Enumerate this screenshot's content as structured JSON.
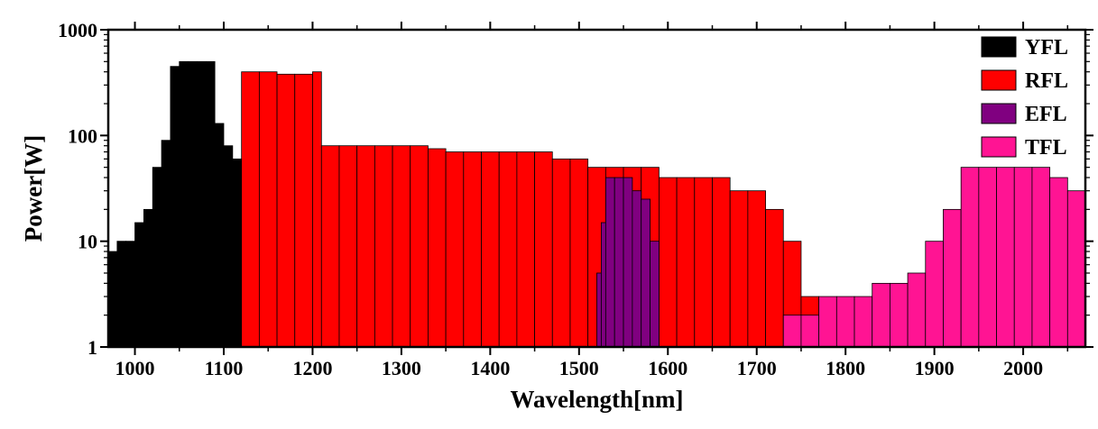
{
  "chart_data": {
    "type": "bar",
    "xlabel": "Wavelength[nm]",
    "ylabel": "Power[W]",
    "xlim": [
      970,
      2070
    ],
    "ylim": [
      1,
      1000
    ],
    "yscale": "log",
    "grid": false,
    "legend_position": "top-right",
    "x_ticks": [
      "1000",
      "1100",
      "1200",
      "1300",
      "1400",
      "1500",
      "1600",
      "1700",
      "1800",
      "1900",
      "2000"
    ],
    "y_ticks": [
      "1",
      "10",
      "100",
      "1000"
    ],
    "series": [
      {
        "name": "YFL",
        "color": "#000000",
        "bins": [
          [
            970,
            980,
            8
          ],
          [
            980,
            990,
            10
          ],
          [
            990,
            1000,
            10
          ],
          [
            1000,
            1010,
            15
          ],
          [
            1010,
            1020,
            20
          ],
          [
            1020,
            1030,
            50
          ],
          [
            1030,
            1040,
            90
          ],
          [
            1040,
            1050,
            450
          ],
          [
            1050,
            1060,
            500
          ],
          [
            1060,
            1070,
            500
          ],
          [
            1070,
            1080,
            500
          ],
          [
            1080,
            1090,
            500
          ],
          [
            1090,
            1100,
            130
          ],
          [
            1100,
            1110,
            80
          ],
          [
            1110,
            1120,
            60
          ]
        ]
      },
      {
        "name": "RFL",
        "color": "#ff0000",
        "bins": [
          [
            1120,
            1140,
            400
          ],
          [
            1140,
            1160,
            400
          ],
          [
            1160,
            1180,
            380
          ],
          [
            1180,
            1200,
            380
          ],
          [
            1200,
            1210,
            400
          ],
          [
            1210,
            1230,
            80
          ],
          [
            1230,
            1250,
            80
          ],
          [
            1250,
            1270,
            80
          ],
          [
            1270,
            1290,
            80
          ],
          [
            1290,
            1310,
            80
          ],
          [
            1310,
            1330,
            80
          ],
          [
            1330,
            1350,
            75
          ],
          [
            1350,
            1370,
            70
          ],
          [
            1370,
            1390,
            70
          ],
          [
            1390,
            1410,
            70
          ],
          [
            1410,
            1430,
            70
          ],
          [
            1430,
            1450,
            70
          ],
          [
            1450,
            1470,
            70
          ],
          [
            1470,
            1490,
            60
          ],
          [
            1490,
            1510,
            60
          ],
          [
            1510,
            1530,
            50
          ],
          [
            1530,
            1550,
            50
          ],
          [
            1550,
            1570,
            50
          ],
          [
            1570,
            1590,
            50
          ],
          [
            1590,
            1610,
            40
          ],
          [
            1610,
            1630,
            40
          ],
          [
            1630,
            1650,
            40
          ],
          [
            1650,
            1670,
            40
          ],
          [
            1670,
            1690,
            30
          ],
          [
            1690,
            1710,
            30
          ],
          [
            1710,
            1730,
            20
          ],
          [
            1730,
            1750,
            10
          ],
          [
            1750,
            1770,
            3
          ]
        ]
      },
      {
        "name": "EFL",
        "color": "#800080",
        "bins": [
          [
            1520,
            1525,
            5
          ],
          [
            1525,
            1530,
            15
          ],
          [
            1530,
            1540,
            40
          ],
          [
            1540,
            1550,
            40
          ],
          [
            1550,
            1560,
            40
          ],
          [
            1560,
            1570,
            30
          ],
          [
            1570,
            1580,
            25
          ],
          [
            1580,
            1590,
            10
          ]
        ]
      },
      {
        "name": "TFL",
        "color": "#ff1493",
        "bins": [
          [
            1730,
            1750,
            2
          ],
          [
            1750,
            1770,
            2
          ],
          [
            1770,
            1790,
            3
          ],
          [
            1790,
            1810,
            3
          ],
          [
            1810,
            1830,
            3
          ],
          [
            1830,
            1850,
            4
          ],
          [
            1850,
            1870,
            4
          ],
          [
            1870,
            1890,
            5
          ],
          [
            1890,
            1910,
            10
          ],
          [
            1910,
            1930,
            20
          ],
          [
            1930,
            1950,
            50
          ],
          [
            1950,
            1970,
            50
          ],
          [
            1970,
            1990,
            50
          ],
          [
            1990,
            2010,
            50
          ],
          [
            2010,
            2030,
            50
          ],
          [
            2030,
            2050,
            40
          ],
          [
            2050,
            2070,
            30
          ]
        ]
      }
    ]
  }
}
